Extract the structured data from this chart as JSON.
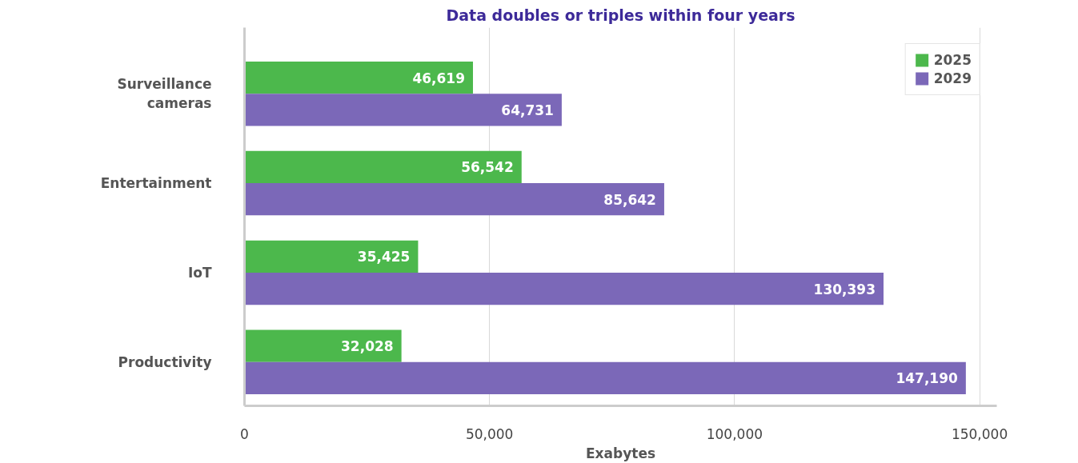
{
  "chart_data": {
    "type": "bar",
    "orientation": "horizontal",
    "title": "Data doubles or triples within four years",
    "xlabel": "Exabytes",
    "categories": [
      "Surveillance cameras",
      "Entertainment",
      "IoT",
      "Productivity"
    ],
    "series": [
      {
        "name": "2025",
        "color": "#4cb84c",
        "values": [
          46619,
          56542,
          35425,
          32028
        ],
        "value_labels": [
          "46,619",
          "56,542",
          "35,425",
          "32,028"
        ]
      },
      {
        "name": "2029",
        "color": "#7b68b8",
        "values": [
          64731,
          85642,
          130393,
          147190
        ],
        "value_labels": [
          "64,731",
          "85,642",
          "130,393",
          "147,190"
        ]
      }
    ],
    "xlim": [
      0,
      153500
    ],
    "xticks": [
      0,
      {
        "value": 50000,
        "label": "50,000"
      },
      {
        "value": 100000,
        "label": "100,000"
      },
      {
        "value": 150000,
        "label": "150,000"
      }
    ],
    "grid": "x",
    "legend": "top right"
  }
}
